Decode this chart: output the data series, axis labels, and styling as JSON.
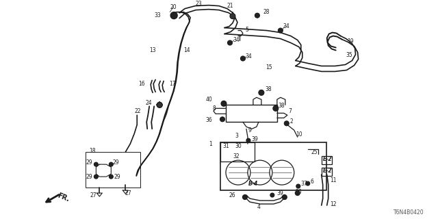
{
  "diagram_id": "T6N4B0420",
  "bg_color": "#ffffff",
  "fig_width": 6.4,
  "fig_height": 3.2,
  "dpi": 100,
  "lc": "#1a1a1a"
}
